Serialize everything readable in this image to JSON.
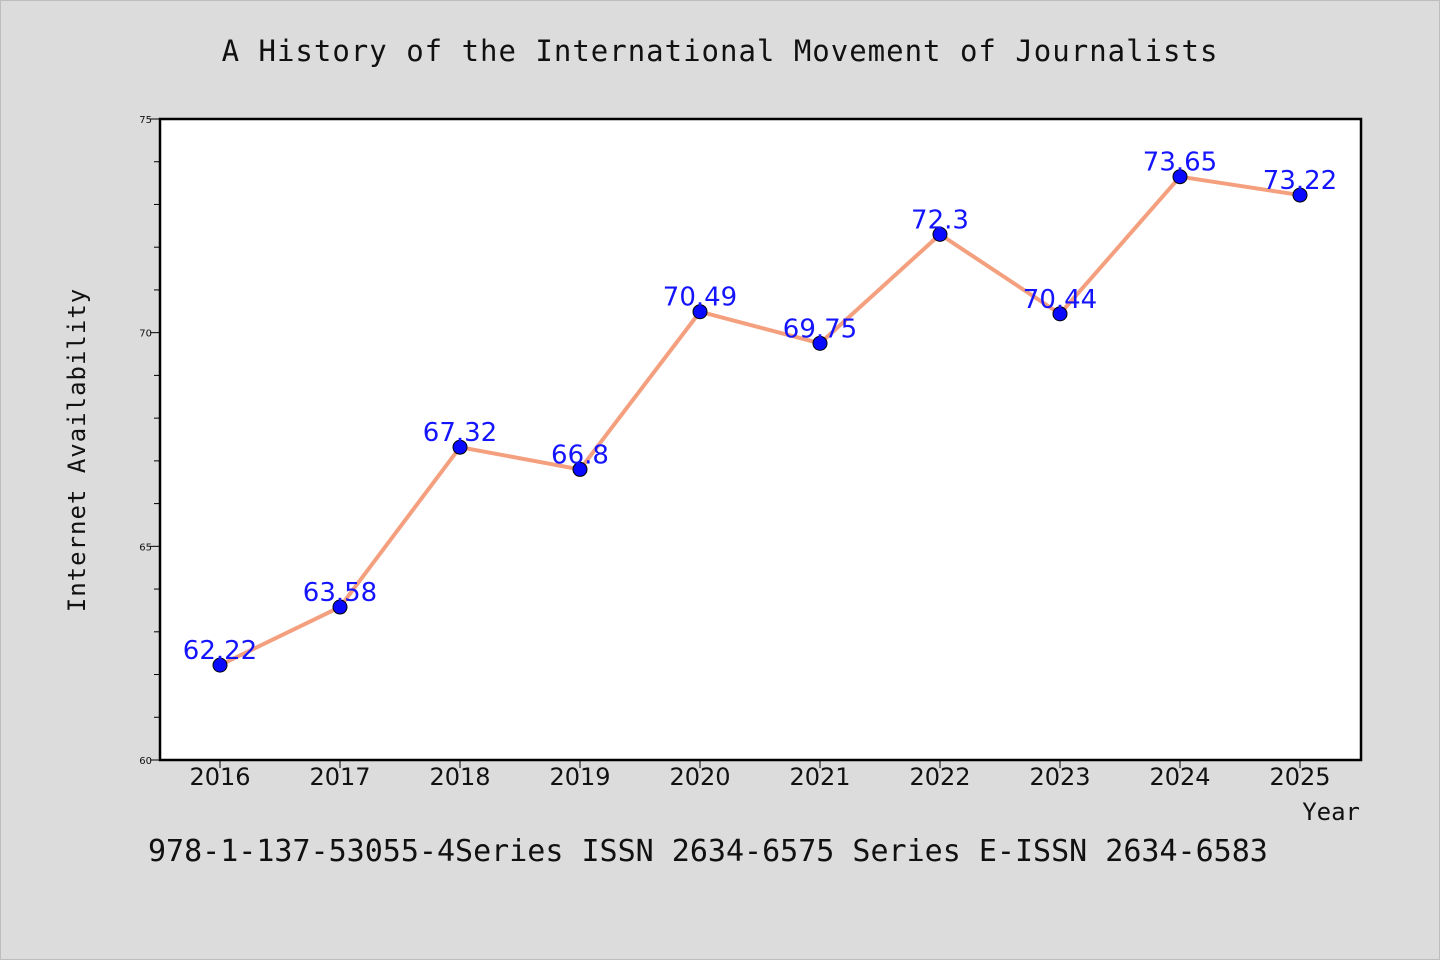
{
  "chart_data": {
    "type": "line",
    "title": "A History of the International Movement of Journalists",
    "xlabel": "Year",
    "ylabel": "Internet Availability",
    "x": [
      "2016",
      "2017",
      "2018",
      "2019",
      "2020",
      "2021",
      "2022",
      "2023",
      "2024",
      "2025"
    ],
    "values": [
      62.22,
      63.58,
      67.32,
      66.8,
      70.49,
      69.75,
      72.3,
      70.44,
      73.65,
      73.22
    ],
    "data_labels": [
      "62.22",
      "63.58",
      "67.32",
      "66.8",
      "70.49",
      "69.75",
      "72.3",
      "70.44",
      "73.65",
      "73.22"
    ],
    "ylim": [
      60,
      75
    ],
    "yticks": [
      "60",
      "65",
      "70",
      "75"
    ],
    "grid": false,
    "line_color": "#f4a07e",
    "marker_color": "#0a0aff",
    "label_color": "#1414ff"
  },
  "footer": {
    "text": "978-1-137-53055-4Series ISSN 2634-6575 Series E-ISSN 2634-6583"
  }
}
